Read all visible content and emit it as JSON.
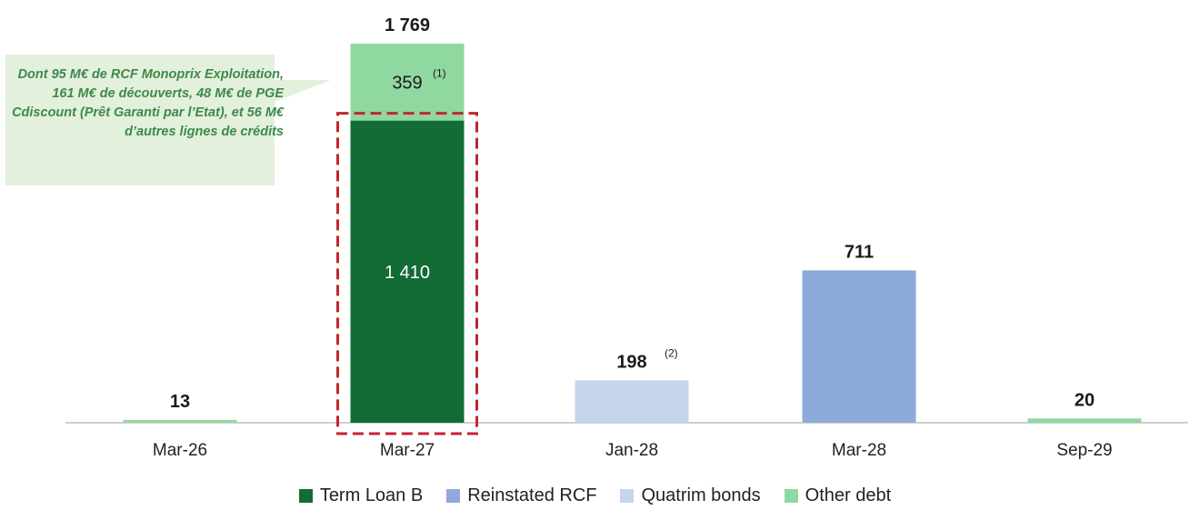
{
  "callout": {
    "text": "Dont 95 M€ de RCF Monoprix Exploitation, 161 M€ de découverts, 48 M€ de PGE Cdiscount (Prêt Garanti par l’Etat), et 56 M€ d’autres lignes de crédits"
  },
  "colors": {
    "Term Loan B": "#136b36",
    "Reinstated RCF": "#8eaadb",
    "Quatrim bonds": "#c5d5ec",
    "Other debt": "#8fd9a0",
    "callout_bg": "#e3f0dc",
    "highlight": "#c0272d"
  },
  "chart_data": {
    "type": "bar",
    "stacked": true,
    "categories": [
      "Mar-26",
      "Mar-27",
      "Jan-28",
      "Mar-28",
      "Sep-29"
    ],
    "series": [
      {
        "name": "Term Loan B",
        "values": [
          0,
          1410,
          0,
          0,
          0
        ]
      },
      {
        "name": "Reinstated RCF",
        "values": [
          0,
          0,
          0,
          711,
          0
        ]
      },
      {
        "name": "Quatrim bonds",
        "values": [
          0,
          0,
          198,
          0,
          0
        ]
      },
      {
        "name": "Other debt",
        "values": [
          13,
          359,
          0,
          0,
          20
        ]
      }
    ],
    "totals": [
      "13",
      "1 769",
      "198",
      "711",
      "20"
    ],
    "total_footnotes": [
      "",
      "",
      "(2)",
      "",
      ""
    ],
    "segment_labels": [
      {
        "category": "Mar-27",
        "series": "Term Loan B",
        "text": "1 410",
        "footnote": ""
      },
      {
        "category": "Mar-27",
        "series": "Other debt",
        "text": "359",
        "footnote": "(1)"
      }
    ],
    "highlight_category": "Mar-27",
    "highlight_series": "Term Loan B",
    "ylim": [
      0,
      1769
    ],
    "grid": false,
    "legend_position": "bottom"
  }
}
